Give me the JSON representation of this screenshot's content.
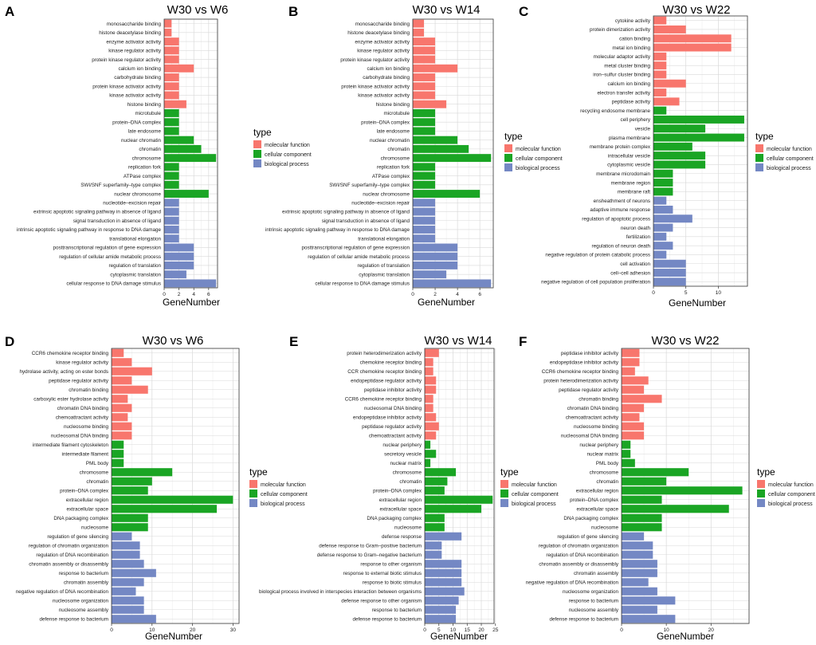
{
  "colors": {
    "molecular function": "#f8766d",
    "cellular component": "#1aa524",
    "biological process": "#7488c4",
    "panel_bg": "#ffffff",
    "grid": "#d9d9d9",
    "border": "#333333"
  },
  "legend_title": "type",
  "legend_items": [
    "molecular function",
    "cellular component",
    "biological process"
  ],
  "chart_data": [
    {
      "panel": "A",
      "type": "bar",
      "orientation": "horizontal",
      "title": "W30 vs W6",
      "xlabel": "GeneNumber",
      "ylabel": "",
      "xlim": [
        0,
        7.2
      ],
      "xticks": [
        0,
        2,
        4,
        6
      ],
      "legend": "right",
      "categories": [
        "monosaccharide binding",
        "histone deacetylase binding",
        "enzyme activator activity",
        "kinase regulator activity",
        "protein kinase regulator activity",
        "calcium ion binding",
        "carbohydrate binding",
        "protein kinase activator activity",
        "kinase activator activity",
        "histone binding",
        "microtubule",
        "protein–DNA complex",
        "late endosome",
        "nuclear chromatin",
        "chromatin",
        "chromosome",
        "replication fork",
        "ATPase complex",
        "SWI/SNF superfamily–type complex",
        "nuclear chromosome",
        "nucleotide–excision repair",
        "extrinsic apoptotic signaling pathway in absence of ligand",
        "signal transduction in absence of ligand",
        "intrinsic apoptotic signaling pathway in response to DNA damage",
        "translational elongation",
        "posttranscriptional regulation of gene expression",
        "regulation of cellular amide metabolic process",
        "regulation of translation",
        "cytoplasmic translation",
        "cellular response to DNA damage stimulus"
      ],
      "values": [
        1,
        1,
        2,
        2,
        2,
        4,
        2,
        2,
        2,
        3,
        2,
        2,
        2,
        4,
        5,
        7,
        2,
        2,
        2,
        6,
        2,
        2,
        2,
        2,
        2,
        4,
        4,
        4,
        3,
        7
      ],
      "types": [
        "molecular function",
        "molecular function",
        "molecular function",
        "molecular function",
        "molecular function",
        "molecular function",
        "molecular function",
        "molecular function",
        "molecular function",
        "molecular function",
        "cellular component",
        "cellular component",
        "cellular component",
        "cellular component",
        "cellular component",
        "cellular component",
        "cellular component",
        "cellular component",
        "cellular component",
        "cellular component",
        "biological process",
        "biological process",
        "biological process",
        "biological process",
        "biological process",
        "biological process",
        "biological process",
        "biological process",
        "biological process",
        "biological process"
      ]
    },
    {
      "panel": "B",
      "type": "bar",
      "orientation": "horizontal",
      "title": "W30 vs W14",
      "xlabel": "GeneNumber",
      "ylabel": "",
      "xlim": [
        0,
        7.2
      ],
      "xticks": [
        0,
        2,
        4,
        6
      ],
      "legend": "right",
      "categories": [
        "monosaccharide binding",
        "histone deacetylase binding",
        "enzyme activator activity",
        "kinase regulator activity",
        "protein kinase regulator activity",
        "calcium ion binding",
        "carbohydrate binding",
        "protein kinase activator activity",
        "kinase activator activity",
        "histone binding",
        "microtubule",
        "protein–DNA complex",
        "late endosome",
        "nuclear chromatin",
        "chromatin",
        "chromosome",
        "replication fork",
        "ATPase complex",
        "SWI/SNF superfamily–type complex",
        "nuclear chromosome",
        "nucleotide–excision repair",
        "extrinsic apoptotic signaling pathway in absence of ligand",
        "signal transduction in absence of ligand",
        "intrinsic apoptotic signaling pathway in response to DNA damage",
        "translational elongation",
        "posttranscriptional regulation of gene expression",
        "regulation of cellular amide metabolic process",
        "regulation of translation",
        "cytoplasmic translation",
        "cellular response to DNA damage stimulus"
      ],
      "values": [
        1,
        1,
        2,
        2,
        2,
        4,
        2,
        2,
        2,
        3,
        2,
        2,
        2,
        4,
        5,
        7,
        2,
        2,
        2,
        6,
        2,
        2,
        2,
        2,
        2,
        4,
        4,
        4,
        3,
        7
      ],
      "types": [
        "molecular function",
        "molecular function",
        "molecular function",
        "molecular function",
        "molecular function",
        "molecular function",
        "molecular function",
        "molecular function",
        "molecular function",
        "molecular function",
        "cellular component",
        "cellular component",
        "cellular component",
        "cellular component",
        "cellular component",
        "cellular component",
        "cellular component",
        "cellular component",
        "cellular component",
        "cellular component",
        "biological process",
        "biological process",
        "biological process",
        "biological process",
        "biological process",
        "biological process",
        "biological process",
        "biological process",
        "biological process",
        "biological process"
      ]
    },
    {
      "panel": "C",
      "type": "bar",
      "orientation": "horizontal",
      "title": "W30 vs W22",
      "xlabel": "GeneNumber",
      "ylabel": "",
      "xlim": [
        0,
        14.5
      ],
      "xticks": [
        0,
        5,
        10
      ],
      "legend": "right",
      "categories": [
        "cytokine activity",
        "protein dimerization activity",
        "cation binding",
        "metal ion binding",
        "molecular adaptor activity",
        "metal cluster binding",
        "iron–sulfur cluster binding",
        "calcium ion binding",
        "electron transfer activity",
        "peptidase activity",
        "recycling endosome membrane",
        "cell periphery",
        "vesicle",
        "plasma membrane",
        "membrane protein complex",
        "intracellular vesicle",
        "cytoplasmic vesicle",
        "membrane microdomain",
        "membrane region",
        "membrane raft",
        "ensheathment of neurons",
        "adaptive immune response",
        "regulation of apoptotic process",
        "neuron death",
        "fertilization",
        "regulation of neuron death",
        "negative regulation of protein catabolic process",
        "cell activation",
        "cell–cell adhesion",
        "negative regulation of cell population proliferation"
      ],
      "values": [
        2,
        5,
        12,
        12,
        2,
        2,
        2,
        5,
        2,
        4,
        2,
        14,
        8,
        14,
        6,
        8,
        8,
        3,
        3,
        3,
        2,
        3,
        6,
        3,
        2,
        3,
        2,
        5,
        5,
        5
      ],
      "types": [
        "molecular function",
        "molecular function",
        "molecular function",
        "molecular function",
        "molecular function",
        "molecular function",
        "molecular function",
        "molecular function",
        "molecular function",
        "molecular function",
        "cellular component",
        "cellular component",
        "cellular component",
        "cellular component",
        "cellular component",
        "cellular component",
        "cellular component",
        "cellular component",
        "cellular component",
        "cellular component",
        "biological process",
        "biological process",
        "biological process",
        "biological process",
        "biological process",
        "biological process",
        "biological process",
        "biological process",
        "biological process",
        "biological process"
      ]
    },
    {
      "panel": "D",
      "type": "bar",
      "orientation": "horizontal",
      "title": "W30 vs W6",
      "xlabel": "GeneNumber",
      "ylabel": "",
      "xlim": [
        0,
        31.5
      ],
      "xticks": [
        0,
        10,
        20,
        30
      ],
      "legend": "right",
      "categories": [
        "CCR6 chemokine receptor binding",
        "kinase regulator activity",
        "hydrolase activity, acting on ester bonds",
        "peptidase regulator activity",
        "chromatin binding",
        "carboxylic ester hydrolase activity",
        "chromatin DNA binding",
        "chemoattractant activity",
        "nucleosome binding",
        "nucleosomal DNA binding",
        "intermediate filament cytoskeleton",
        "intermediate filament",
        "PML body",
        "chromosome",
        "chromatin",
        "protein–DNA complex",
        "extracellular region",
        "extracellular space",
        "DNA packaging complex",
        "nucleosome",
        "regulation of gene silencing",
        "regulation of chromatin organization",
        "regulation of DNA recombination",
        "chromatin assembly or disassembly",
        "response to bacterium",
        "chromatin assembly",
        "negative regulation of DNA recombination",
        "nucleosome organization",
        "nucleosome assembly",
        "defense response to bacterium"
      ],
      "values": [
        3,
        5,
        10,
        5,
        9,
        4,
        5,
        4,
        5,
        5,
        3,
        3,
        3,
        15,
        10,
        9,
        30,
        26,
        9,
        9,
        5,
        7,
        7,
        8,
        11,
        8,
        6,
        8,
        8,
        11
      ],
      "types": [
        "molecular function",
        "molecular function",
        "molecular function",
        "molecular function",
        "molecular function",
        "molecular function",
        "molecular function",
        "molecular function",
        "molecular function",
        "molecular function",
        "cellular component",
        "cellular component",
        "cellular component",
        "cellular component",
        "cellular component",
        "cellular component",
        "cellular component",
        "cellular component",
        "cellular component",
        "cellular component",
        "biological process",
        "biological process",
        "biological process",
        "biological process",
        "biological process",
        "biological process",
        "biological process",
        "biological process",
        "biological process",
        "biological process"
      ]
    },
    {
      "panel": "E",
      "type": "bar",
      "orientation": "horizontal",
      "title": "W30 vs W14",
      "xlabel": "GeneNumber",
      "ylabel": "",
      "xlim": [
        0,
        24.5
      ],
      "xticks": [
        0,
        5,
        10,
        15,
        20,
        25
      ],
      "legend": "right",
      "categories": [
        "protein heterodimerization activity",
        "chemokine receptor binding",
        "CCR chemokine receptor binding",
        "endopeptidase regulator activity",
        "peptidase inhibitor activity",
        "CCR6 chemokine receptor binding",
        "nucleosomal DNA binding",
        "endopeptidase inhibitor activity",
        "peptidase regulator activity",
        "chemoattractant activity",
        "nuclear periphery",
        "secretory vesicle",
        "nuclear matrix",
        "chromosome",
        "chromatin",
        "protein–DNA complex",
        "extracellular region",
        "extracellular space",
        "DNA packaging complex",
        "nucleosome",
        "defense response",
        "defense response to Gram–positive bacterium",
        "defense response to Gram–negative bacterium",
        "response to other organism",
        "response to external biotic stimulus",
        "response to biotic stimulus",
        "biological process involved in interspecies interaction between organisms",
        "defense response to other organism",
        "response to bacterium",
        "defense response to bacterium"
      ],
      "values": [
        5,
        3,
        3,
        4,
        4,
        3,
        3,
        4,
        5,
        4,
        2,
        4,
        2,
        11,
        8,
        7,
        24,
        20,
        7,
        7,
        13,
        6,
        6,
        13,
        13,
        13,
        14,
        12,
        11,
        11
      ],
      "types": [
        "molecular function",
        "molecular function",
        "molecular function",
        "molecular function",
        "molecular function",
        "molecular function",
        "molecular function",
        "molecular function",
        "molecular function",
        "molecular function",
        "cellular component",
        "cellular component",
        "cellular component",
        "cellular component",
        "cellular component",
        "cellular component",
        "cellular component",
        "cellular component",
        "cellular component",
        "cellular component",
        "biological process",
        "biological process",
        "biological process",
        "biological process",
        "biological process",
        "biological process",
        "biological process",
        "biological process",
        "biological process",
        "biological process"
      ]
    },
    {
      "panel": "F",
      "type": "bar",
      "orientation": "horizontal",
      "title": "W30 vs W22",
      "xlabel": "GeneNumber",
      "ylabel": "",
      "xlim": [
        0,
        28.5
      ],
      "xticks": [
        0,
        10,
        20
      ],
      "legend": "right",
      "categories": [
        "peptidase inhibitor activity",
        "endopeptidase inhibitor activity",
        "CCR6 chemokine receptor binding",
        "protein heterodimerization activity",
        "peptidase regulator activity",
        "chromatin binding",
        "chromatin DNA binding",
        "chemoattractant activity",
        "nucleosome binding",
        "nucleosomal DNA binding",
        "nuclear periphery",
        "nuclear matrix",
        "PML body",
        "chromosome",
        "chromatin",
        "extracellular region",
        "protein–DNA complex",
        "extracellular space",
        "DNA packaging complex",
        "nucleosome",
        "regulation of gene silencing",
        "regulation of chromatin organization",
        "regulation of DNA recombination",
        "chromatin assembly or disassembly",
        "chromatin assembly",
        "negative regulation of DNA recombination",
        "nucleosome organization",
        "response to bacterium",
        "nucleosome assembly",
        "defense response to bacterium"
      ],
      "values": [
        4,
        4,
        3,
        6,
        5,
        9,
        5,
        4,
        5,
        5,
        2,
        2,
        3,
        15,
        10,
        27,
        9,
        24,
        9,
        9,
        5,
        7,
        7,
        8,
        8,
        6,
        8,
        12,
        8,
        12
      ],
      "types": [
        "molecular function",
        "molecular function",
        "molecular function",
        "molecular function",
        "molecular function",
        "molecular function",
        "molecular function",
        "molecular function",
        "molecular function",
        "molecular function",
        "cellular component",
        "cellular component",
        "cellular component",
        "cellular component",
        "cellular component",
        "cellular component",
        "cellular component",
        "cellular component",
        "cellular component",
        "cellular component",
        "biological process",
        "biological process",
        "biological process",
        "biological process",
        "biological process",
        "biological process",
        "biological process",
        "biological process",
        "biological process",
        "biological process"
      ]
    }
  ]
}
